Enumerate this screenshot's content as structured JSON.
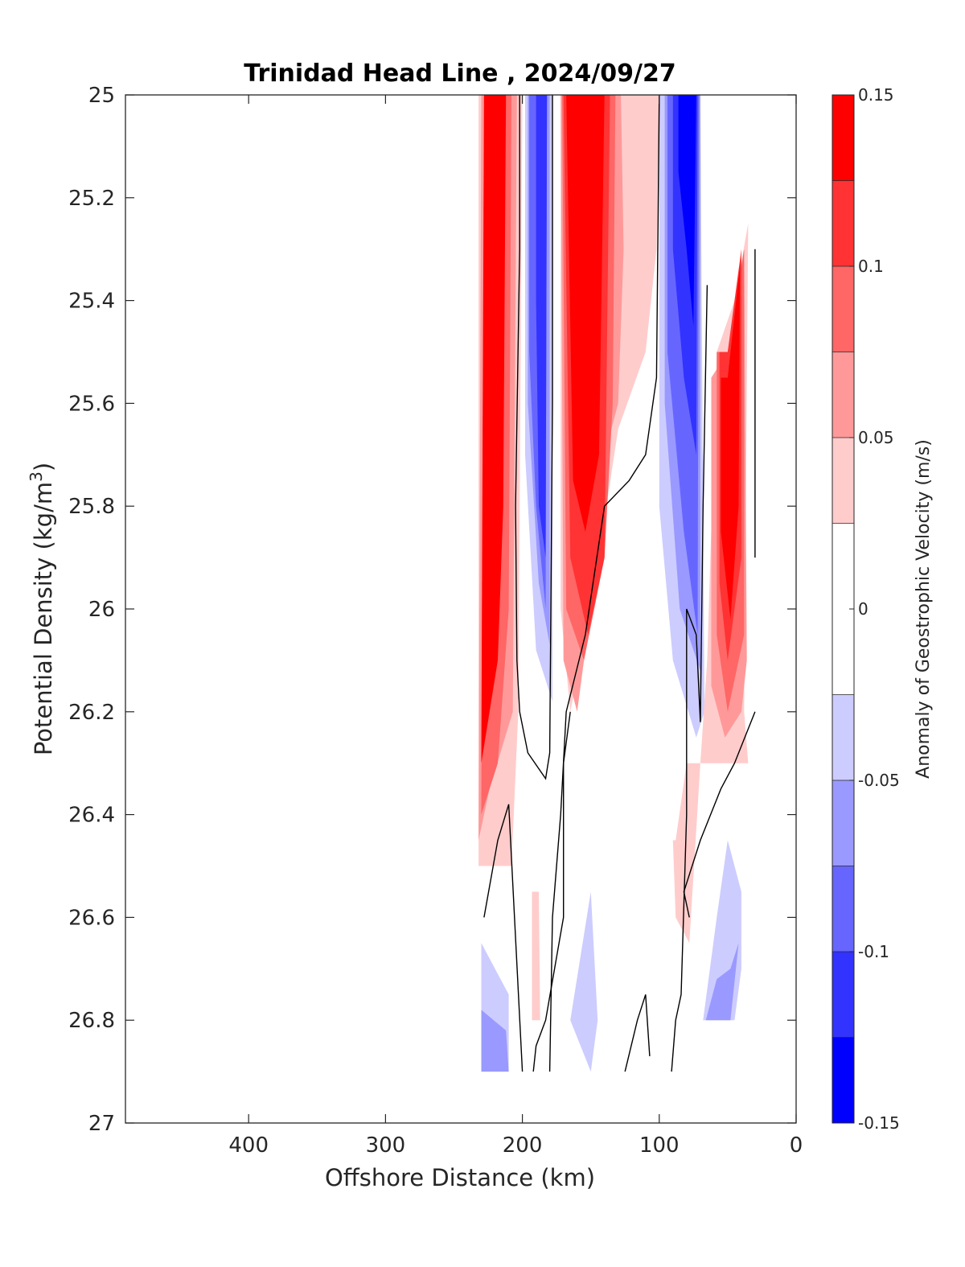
{
  "chart_data": {
    "type": "contourf",
    "title": "Trinidad Head Line , 2024/09/27",
    "xlabel": "Offshore Distance (km)",
    "ylabel_main": "Potential Density (kg/m",
    "ylabel_sup": "3",
    "ylabel_close": ")",
    "colorbar_label": "Anomaly of Geostrophic Velocity (m/s)",
    "xlim": [
      490,
      0
    ],
    "ylim": [
      27,
      25
    ],
    "x_reversed": true,
    "y_reversed": true,
    "x_ticks": [
      400,
      300,
      200,
      100,
      0
    ],
    "x_tick_labels": [
      "400",
      "300",
      "200",
      "100",
      "0"
    ],
    "y_ticks": [
      25,
      25.2,
      25.4,
      25.6,
      25.8,
      26,
      26.2,
      26.4,
      26.6,
      26.8,
      27
    ],
    "y_tick_labels": [
      "25",
      "25.2",
      "25.4",
      "25.6",
      "25.8",
      "26",
      "26.2",
      "26.4",
      "26.6",
      "26.8",
      "27"
    ],
    "colorbar_levels": [
      -0.15,
      -0.125,
      -0.1,
      -0.075,
      -0.05,
      -0.025,
      0.025,
      0.05,
      0.075,
      0.1,
      0.125,
      0.15
    ],
    "colorbar_colors": [
      "#0000ff",
      "#3333ff",
      "#6666ff",
      "#9999ff",
      "#ccccff",
      "#ffffff",
      "#ffcccc",
      "#ff9999",
      "#ff6666",
      "#ff3333",
      "#ff0000"
    ],
    "colorbar_ticks": [
      0.15,
      0.1,
      0.05,
      0,
      -0.05,
      -0.1,
      -0.15
    ],
    "colorbar_tick_labels": [
      "0.15",
      "0.1",
      "0.05",
      "0",
      "-0.05",
      "-0.1",
      "-0.15"
    ],
    "bands": [
      {
        "color": "#ffcccc",
        "points": [
          [
            230,
            25
          ],
          [
            200,
            25
          ],
          [
            203,
            26.2
          ],
          [
            208,
            26.5
          ],
          [
            232,
            26.5
          ],
          [
            232,
            25
          ]
        ]
      },
      {
        "color": "#ff9999",
        "points": [
          [
            228,
            25
          ],
          [
            204,
            25
          ],
          [
            207,
            26.2
          ],
          [
            224,
            26.35
          ],
          [
            232,
            26.45
          ],
          [
            230,
            25
          ]
        ]
      },
      {
        "color": "#ff6666",
        "points": [
          [
            228,
            25
          ],
          [
            208,
            25
          ],
          [
            210,
            26.0
          ],
          [
            218,
            26.3
          ],
          [
            230,
            26.4
          ],
          [
            228,
            25
          ]
        ]
      },
      {
        "color": "#ff0000",
        "points": [
          [
            228,
            25
          ],
          [
            212,
            25
          ],
          [
            214,
            25.8
          ],
          [
            218,
            26.1
          ],
          [
            230,
            26.3
          ],
          [
            228,
            25
          ]
        ]
      },
      {
        "color": "#ccccff",
        "points": [
          [
            198,
            25
          ],
          [
            178,
            25
          ],
          [
            178,
            26.18
          ],
          [
            190,
            26.08
          ],
          [
            198,
            25.7
          ],
          [
            198,
            25
          ]
        ]
      },
      {
        "color": "#9999ff",
        "points": [
          [
            196,
            25
          ],
          [
            180,
            25
          ],
          [
            180,
            26.07
          ],
          [
            188,
            25.95
          ],
          [
            196,
            25.6
          ],
          [
            196,
            25
          ]
        ]
      },
      {
        "color": "#6666ff",
        "points": [
          [
            195,
            25
          ],
          [
            182,
            25
          ],
          [
            183,
            26.0
          ],
          [
            190,
            25.8
          ],
          [
            195,
            25.5
          ],
          [
            195,
            25
          ]
        ]
      },
      {
        "color": "#3333ff",
        "points": [
          [
            190,
            25
          ],
          [
            182,
            25
          ],
          [
            183,
            25.9
          ],
          [
            188,
            25.8
          ],
          [
            190,
            25.4
          ],
          [
            190,
            25
          ]
        ]
      },
      {
        "color": "#ffcccc",
        "points": [
          [
            172,
            25
          ],
          [
            100,
            25
          ],
          [
            102,
            25.3
          ],
          [
            110,
            25.5
          ],
          [
            130,
            25.65
          ],
          [
            150,
            26.0
          ],
          [
            165,
            26.2
          ],
          [
            172,
            26.0
          ],
          [
            172,
            25
          ]
        ]
      },
      {
        "color": "#ff9999",
        "points": [
          [
            172,
            25
          ],
          [
            128,
            25
          ],
          [
            126,
            25.3
          ],
          [
            130,
            25.6
          ],
          [
            140,
            25.7
          ],
          [
            150,
            26.0
          ],
          [
            160,
            26.2
          ],
          [
            170,
            26.1
          ],
          [
            172,
            25
          ]
        ]
      },
      {
        "color": "#ff6666",
        "points": [
          [
            171,
            25
          ],
          [
            132,
            25
          ],
          [
            134,
            25.6
          ],
          [
            140,
            25.9
          ],
          [
            155,
            26.1
          ],
          [
            168,
            26.0
          ],
          [
            171,
            25
          ]
        ]
      },
      {
        "color": "#ff3333",
        "points": [
          [
            170,
            25
          ],
          [
            136,
            25
          ],
          [
            140,
            25.9
          ],
          [
            152,
            26.05
          ],
          [
            165,
            25.9
          ],
          [
            170,
            25
          ]
        ]
      },
      {
        "color": "#ff0000",
        "points": [
          [
            168,
            25
          ],
          [
            140,
            25
          ],
          [
            144,
            25.7
          ],
          [
            154,
            25.85
          ],
          [
            163,
            25.75
          ],
          [
            168,
            25
          ]
        ]
      },
      {
        "color": "#ccccff",
        "points": [
          [
            100,
            25
          ],
          [
            70,
            25
          ],
          [
            67,
            26.2
          ],
          [
            73,
            26.25
          ],
          [
            90,
            26.1
          ],
          [
            100,
            25.8
          ],
          [
            100,
            25
          ]
        ]
      },
      {
        "color": "#9999ff",
        "points": [
          [
            96,
            25
          ],
          [
            70,
            25
          ],
          [
            70,
            26.12
          ],
          [
            85,
            26.0
          ],
          [
            96,
            25.6
          ],
          [
            96,
            25
          ]
        ]
      },
      {
        "color": "#6666ff",
        "points": [
          [
            94,
            25
          ],
          [
            71,
            25
          ],
          [
            72,
            26.05
          ],
          [
            82,
            25.85
          ],
          [
            94,
            25.5
          ],
          [
            94,
            25
          ]
        ]
      },
      {
        "color": "#3333ff",
        "points": [
          [
            90,
            25
          ],
          [
            72,
            25
          ],
          [
            73,
            25.7
          ],
          [
            82,
            25.55
          ],
          [
            90,
            25.3
          ],
          [
            90,
            25
          ]
        ]
      },
      {
        "color": "#0000ff",
        "points": [
          [
            86,
            25
          ],
          [
            73,
            25
          ],
          [
            75,
            25.45
          ],
          [
            80,
            25.3
          ],
          [
            86,
            25.15
          ],
          [
            86,
            25
          ]
        ]
      },
      {
        "color": "#ffcccc",
        "points": [
          [
            88,
            26.45
          ],
          [
            80,
            26.3
          ],
          [
            68,
            26.3
          ],
          [
            55,
            26.3
          ],
          [
            35,
            26.3
          ],
          [
            38,
            26.2
          ],
          [
            35,
            25.25
          ],
          [
            45,
            25.4
          ],
          [
            58,
            25.5
          ],
          [
            65,
            26.1
          ],
          [
            70,
            26.3
          ],
          [
            78,
            26.65
          ],
          [
            88,
            26.6
          ],
          [
            90,
            26.45
          ]
        ]
      },
      {
        "color": "#ff9999",
        "points": [
          [
            62,
            25.55
          ],
          [
            50,
            25.5
          ],
          [
            38,
            25.3
          ],
          [
            36,
            26.1
          ],
          [
            40,
            26.2
          ],
          [
            52,
            26.25
          ],
          [
            62,
            26.15
          ],
          [
            62,
            25.55
          ]
        ]
      },
      {
        "color": "#ff6666",
        "points": [
          [
            58,
            25.5
          ],
          [
            50,
            25.5
          ],
          [
            38,
            25.3
          ],
          [
            38,
            26.05
          ],
          [
            50,
            26.2
          ],
          [
            58,
            26.05
          ],
          [
            58,
            25.5
          ]
        ]
      },
      {
        "color": "#ff3333",
        "points": [
          [
            56,
            25.5
          ],
          [
            50,
            25.5
          ],
          [
            40,
            25.3
          ],
          [
            40,
            25.9
          ],
          [
            50,
            26.1
          ],
          [
            56,
            25.95
          ],
          [
            56,
            25.5
          ]
        ]
      },
      {
        "color": "#ff0000",
        "points": [
          [
            55,
            25.55
          ],
          [
            50,
            25.55
          ],
          [
            41,
            25.33
          ],
          [
            42,
            25.8
          ],
          [
            48,
            26.02
          ],
          [
            55,
            25.85
          ],
          [
            55,
            25.55
          ]
        ]
      },
      {
        "color": "#ffcccc",
        "points": [
          [
            193,
            26.55
          ],
          [
            188,
            26.55
          ],
          [
            187,
            26.8
          ],
          [
            193,
            26.8
          ],
          [
            193,
            26.55
          ]
        ]
      },
      {
        "color": "#ccccff",
        "points": [
          [
            230,
            26.65
          ],
          [
            210,
            26.75
          ],
          [
            210,
            26.9
          ],
          [
            230,
            26.9
          ],
          [
            230,
            26.65
          ]
        ]
      },
      {
        "color": "#9999ff",
        "points": [
          [
            230,
            26.78
          ],
          [
            212,
            26.82
          ],
          [
            210,
            26.9
          ],
          [
            230,
            26.9
          ],
          [
            230,
            26.78
          ]
        ]
      },
      {
        "color": "#ccccff",
        "points": [
          [
            165,
            26.8
          ],
          [
            150,
            26.55
          ],
          [
            145,
            26.8
          ],
          [
            150,
            26.9
          ],
          [
            165,
            26.8
          ]
        ]
      },
      {
        "color": "#ccccff",
        "points": [
          [
            68,
            26.8
          ],
          [
            45,
            26.8
          ],
          [
            40,
            26.7
          ],
          [
            40,
            26.55
          ],
          [
            50,
            26.45
          ],
          [
            58,
            26.6
          ],
          [
            68,
            26.8
          ]
        ]
      },
      {
        "color": "#9999ff",
        "points": [
          [
            66,
            26.8
          ],
          [
            48,
            26.8
          ],
          [
            42,
            26.65
          ],
          [
            48,
            26.7
          ],
          [
            58,
            26.72
          ],
          [
            66,
            26.8
          ]
        ]
      }
    ],
    "zero_contours": [
      [
        [
          202,
          25
        ],
        [
          202,
          25.3
        ],
        [
          205,
          25.8
        ],
        [
          204,
          26.1
        ],
        [
          202,
          26.2
        ],
        [
          196,
          26.28
        ],
        [
          183,
          26.33
        ],
        [
          180,
          26.28
        ],
        [
          178,
          25.6
        ],
        [
          178,
          25
        ]
      ],
      [
        [
          228,
          26.6
        ],
        [
          218,
          26.45
        ],
        [
          210,
          26.38
        ],
        [
          200,
          26.9
        ]
      ],
      [
        [
          192,
          26.9
        ],
        [
          190,
          26.85
        ],
        [
          183,
          26.8
        ],
        [
          170,
          26.6
        ],
        [
          170,
          26.3
        ],
        [
          165,
          26.2
        ]
      ],
      [
        [
          180,
          26.9
        ],
        [
          178,
          26.6
        ],
        [
          172,
          26.4
        ],
        [
          168,
          26.2
        ],
        [
          154,
          26.05
        ],
        [
          140,
          25.8
        ],
        [
          122,
          25.75
        ],
        [
          110,
          25.7
        ],
        [
          102,
          25.55
        ],
        [
          100,
          25.0
        ]
      ],
      [
        [
          107,
          26.87
        ],
        [
          110,
          26.75
        ],
        [
          116,
          26.8
        ],
        [
          125,
          26.9
        ]
      ],
      [
        [
          91,
          26.9
        ],
        [
          88,
          26.8
        ],
        [
          84,
          26.75
        ],
        [
          80,
          26.4
        ],
        [
          80,
          26.0
        ],
        [
          73,
          26.05
        ],
        [
          70,
          26.22
        ],
        [
          68,
          25.8
        ],
        [
          65,
          25.37
        ]
      ],
      [
        [
          78,
          26.6
        ],
        [
          82,
          26.55
        ],
        [
          70,
          26.45
        ],
        [
          55,
          26.35
        ],
        [
          45,
          26.3
        ],
        [
          30,
          26.2
        ]
      ],
      [
        [
          30,
          25.3
        ],
        [
          30,
          25.9
        ]
      ]
    ]
  }
}
